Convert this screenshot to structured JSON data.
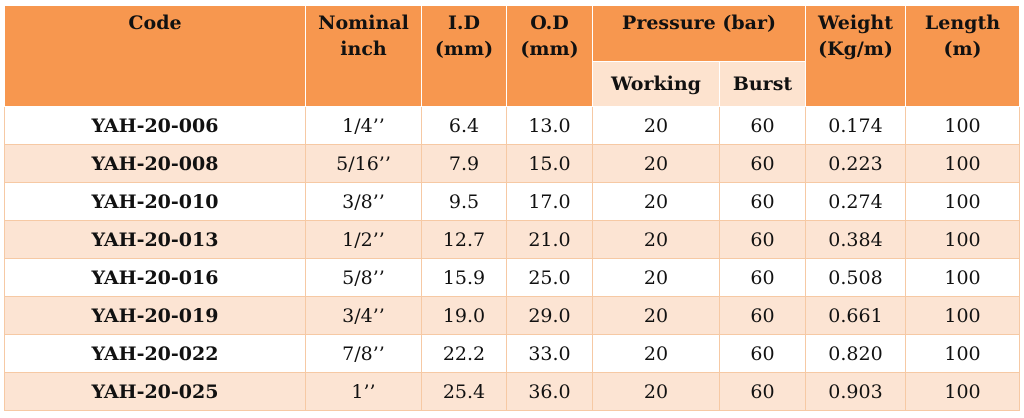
{
  "headers": {
    "code": "Code",
    "nominal_line1": "Nominal",
    "nominal_line2": "inch",
    "id_line1": "I.D",
    "id_line2": "(mm)",
    "od_line1": "O.D",
    "od_line2": "(mm)",
    "pressure": "Pressure (bar)",
    "working": "Working",
    "burst": "Burst",
    "weight_line1": "Weight",
    "weight_line2": "(Kg/m)",
    "length_line1": "Length",
    "length_line2": "(m)"
  },
  "rows": [
    {
      "code": "YAH-20-006",
      "nominal": "1/4’’",
      "id": "6.4",
      "od": "13.0",
      "working": "20",
      "burst": "60",
      "weight": "0.174",
      "length": "100"
    },
    {
      "code": "YAH-20-008",
      "nominal": "5/16’’",
      "id": "7.9",
      "od": "15.0",
      "working": "20",
      "burst": "60",
      "weight": "0.223",
      "length": "100"
    },
    {
      "code": "YAH-20-010",
      "nominal": "3/8’’",
      "id": "9.5",
      "od": "17.0",
      "working": "20",
      "burst": "60",
      "weight": "0.274",
      "length": "100"
    },
    {
      "code": "YAH-20-013",
      "nominal": "1/2’’",
      "id": "12.7",
      "od": "21.0",
      "working": "20",
      "burst": "60",
      "weight": "0.384",
      "length": "100"
    },
    {
      "code": "YAH-20-016",
      "nominal": "5/8’’",
      "id": "15.9",
      "od": "25.0",
      "working": "20",
      "burst": "60",
      "weight": "0.508",
      "length": "100"
    },
    {
      "code": "YAH-20-019",
      "nominal": "3/4’’",
      "id": "19.0",
      "od": "29.0",
      "working": "20",
      "burst": "60",
      "weight": "0.661",
      "length": "100"
    },
    {
      "code": "YAH-20-022",
      "nominal": "7/8’’",
      "id": "22.2",
      "od": "33.0",
      "working": "20",
      "burst": "60",
      "weight": "0.820",
      "length": "100"
    },
    {
      "code": "YAH-20-025",
      "nominal": "1’’",
      "id": "25.4",
      "od": "36.0",
      "working": "20",
      "burst": "60",
      "weight": "0.903",
      "length": "100"
    }
  ]
}
